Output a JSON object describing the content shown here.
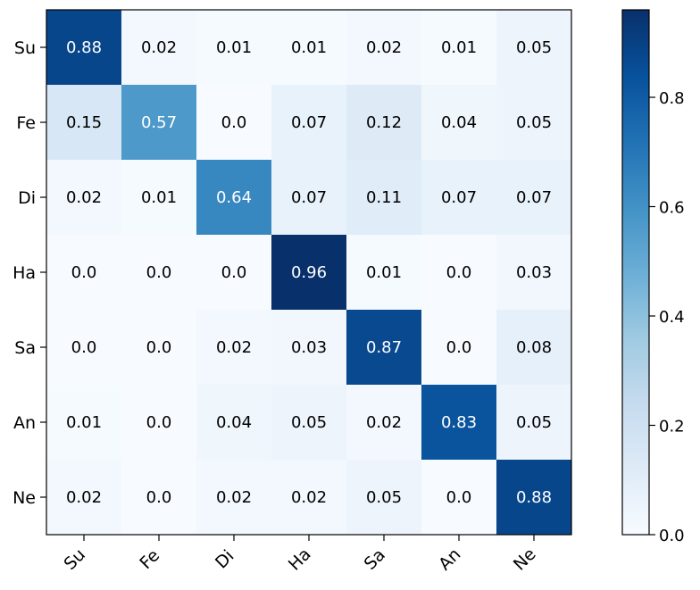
{
  "chart_data": {
    "type": "heatmap",
    "title": "",
    "xlabel": "",
    "ylabel": "",
    "x_categories": [
      "Su",
      "Fe",
      "Di",
      "Ha",
      "Sa",
      "An",
      "Ne"
    ],
    "y_categories": [
      "Su",
      "Fe",
      "Di",
      "Ha",
      "Sa",
      "An",
      "Ne"
    ],
    "values": [
      [
        0.88,
        0.02,
        0.01,
        0.01,
        0.02,
        0.01,
        0.05
      ],
      [
        0.15,
        0.57,
        0.0,
        0.07,
        0.12,
        0.04,
        0.05
      ],
      [
        0.02,
        0.01,
        0.64,
        0.07,
        0.11,
        0.07,
        0.07
      ],
      [
        0.0,
        0.0,
        0.0,
        0.96,
        0.01,
        0.0,
        0.03
      ],
      [
        0.0,
        0.0,
        0.02,
        0.03,
        0.87,
        0.0,
        0.08
      ],
      [
        0.01,
        0.0,
        0.04,
        0.05,
        0.02,
        0.83,
        0.05
      ],
      [
        0.02,
        0.0,
        0.02,
        0.02,
        0.05,
        0.0,
        0.88
      ]
    ],
    "cell_labels": [
      [
        "0.88",
        "0.02",
        "0.01",
        "0.01",
        "0.02",
        "0.01",
        "0.05"
      ],
      [
        "0.15",
        "0.57",
        "0.0",
        "0.07",
        "0.12",
        "0.04",
        "0.05"
      ],
      [
        "0.02",
        "0.01",
        "0.64",
        "0.07",
        "0.11",
        "0.07",
        "0.07"
      ],
      [
        "0.0",
        "0.0",
        "0.0",
        "0.96",
        "0.01",
        "0.0",
        "0.03"
      ],
      [
        "0.0",
        "0.0",
        "0.02",
        "0.03",
        "0.87",
        "0.0",
        "0.08"
      ],
      [
        "0.01",
        "0.0",
        "0.04",
        "0.05",
        "0.02",
        "0.83",
        "0.05"
      ],
      [
        "0.02",
        "0.0",
        "0.02",
        "0.02",
        "0.05",
        "0.0",
        "0.88"
      ]
    ],
    "colormap": "Blues",
    "color_range": [
      0.0,
      0.96
    ],
    "colorbar": {
      "ticks": [
        0.0,
        0.2,
        0.4,
        0.6,
        0.8
      ],
      "tick_labels": [
        "0.0",
        "0.2",
        "0.4",
        "0.6",
        "0.8"
      ]
    },
    "colors": {
      "low": "#f7fbff",
      "high": "#08306b",
      "text_dark": "#000000",
      "text_light": "#ffffff"
    }
  }
}
